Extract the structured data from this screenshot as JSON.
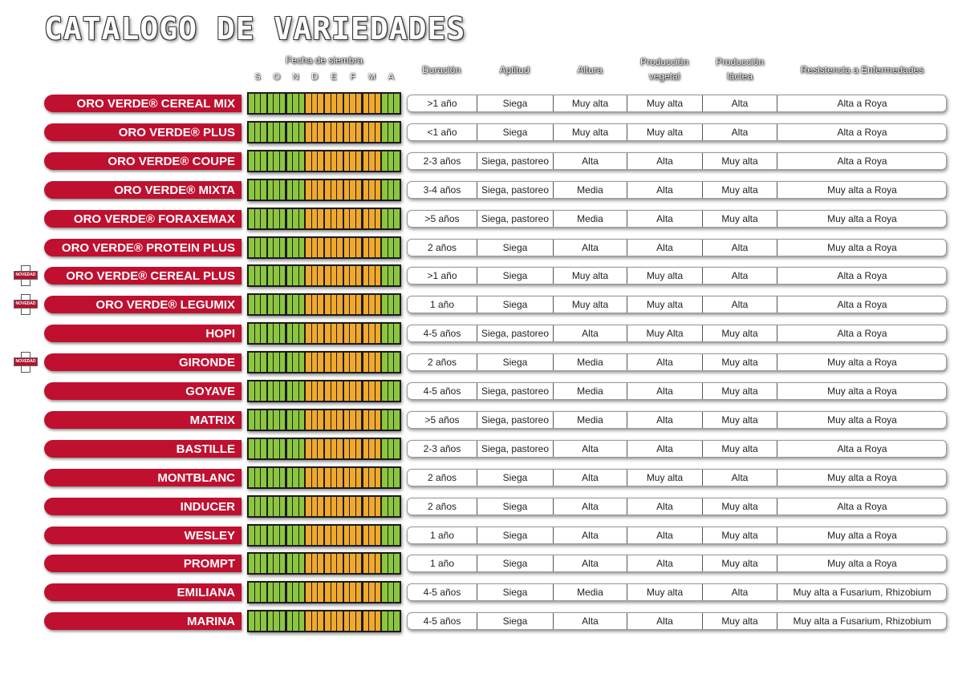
{
  "title": "CATALOGO DE VARIEDADES",
  "headers": {
    "fecha": "Fecha de siembra",
    "months": [
      "S",
      "O",
      "N",
      "D",
      "E",
      "F",
      "M",
      "A"
    ],
    "duracion": "Duración",
    "aptitud": "Aptitud",
    "altura": "Altura",
    "prod_vegetal": "Producción vegetal",
    "prod_lactea": "Producción láctea",
    "resistencia": "Resistencia a Enfermedades"
  },
  "badge_label": "NOVEDAD",
  "colors": {
    "green": "#8cc63f",
    "orange": "#f0a92c",
    "red": "#c0102f"
  },
  "month_colors": [
    "green",
    "green",
    "green",
    "orange",
    "orange",
    "orange",
    "orange",
    "green"
  ],
  "rows": [
    {
      "name": "ORO VERDE® CEREAL MIX",
      "novedad": false,
      "duracion": ">1 año",
      "aptitud": "Siega",
      "altura": "Muy alta",
      "vegetal": "Muy alta",
      "lactea": "Alta",
      "resistencia": "Alta a Roya"
    },
    {
      "name": "ORO VERDE® PLUS",
      "novedad": false,
      "duracion": "<1 año",
      "aptitud": "Siega",
      "altura": "Muy alta",
      "vegetal": "Muy alta",
      "lactea": "Alta",
      "resistencia": "Alta a Roya"
    },
    {
      "name": "ORO VERDE® COUPE",
      "novedad": false,
      "duracion": "2-3 años",
      "aptitud": "Siega, pastoreo",
      "altura": "Alta",
      "vegetal": "Alta",
      "lactea": "Muy alta",
      "resistencia": "Alta a Roya"
    },
    {
      "name": "ORO VERDE® MIXTA",
      "novedad": false,
      "duracion": "3-4 años",
      "aptitud": "Siega, pastoreo",
      "altura": "Media",
      "vegetal": "Alta",
      "lactea": "Muy alta",
      "resistencia": "Muy alta a Roya"
    },
    {
      "name": "ORO VERDE® FORAXEMAX",
      "novedad": false,
      "duracion": ">5 años",
      "aptitud": "Siega, pastoreo",
      "altura": "Media",
      "vegetal": "Alta",
      "lactea": "Muy alta",
      "resistencia": "Muy alta a Roya"
    },
    {
      "name": "ORO VERDE® PROTEIN PLUS",
      "novedad": false,
      "duracion": "2 años",
      "aptitud": "Siega",
      "altura": "Alta",
      "vegetal": "Alta",
      "lactea": "Alta",
      "resistencia": "Muy alta a Roya"
    },
    {
      "name": "ORO VERDE® CEREAL PLUS",
      "novedad": true,
      "duracion": ">1 año",
      "aptitud": "Siega",
      "altura": "Muy alta",
      "vegetal": "Muy alta",
      "lactea": "Alta",
      "resistencia": "Alta a Roya"
    },
    {
      "name": "ORO VERDE® LEGUMIX",
      "novedad": true,
      "duracion": "1 año",
      "aptitud": "Siega",
      "altura": "Muy alta",
      "vegetal": "Muy alta",
      "lactea": "Alta",
      "resistencia": "Alta a Roya"
    },
    {
      "name": "HOPI",
      "novedad": false,
      "duracion": "4-5 años",
      "aptitud": "Siega, pastoreo",
      "altura": "Alta",
      "vegetal": "Muy Alta",
      "lactea": "Muy alta",
      "resistencia": "Alta a Roya"
    },
    {
      "name": "GIRONDE",
      "novedad": true,
      "duracion": "2 años",
      "aptitud": "Siega",
      "altura": "Media",
      "vegetal": "Alta",
      "lactea": "Muy alta",
      "resistencia": "Muy alta a Roya"
    },
    {
      "name": "GOYAVE",
      "novedad": false,
      "duracion": "4-5 años",
      "aptitud": "Siega, pastoreo",
      "altura": "Media",
      "vegetal": "Alta",
      "lactea": "Muy alta",
      "resistencia": "Muy alta a Roya"
    },
    {
      "name": "MATRIX",
      "novedad": false,
      "duracion": ">5 años",
      "aptitud": "Siega, pastoreo",
      "altura": "Media",
      "vegetal": "Alta",
      "lactea": "Muy alta",
      "resistencia": "Muy alta a Roya"
    },
    {
      "name": "BASTILLE",
      "novedad": false,
      "duracion": "2-3 años",
      "aptitud": "Siega, pastoreo",
      "altura": "Alta",
      "vegetal": "Alta",
      "lactea": "Muy alta",
      "resistencia": "Alta a Roya"
    },
    {
      "name": "MONTBLANC",
      "novedad": false,
      "duracion": "2 años",
      "aptitud": "Siega",
      "altura": "Alta",
      "vegetal": "Muy alta",
      "lactea": "Alta",
      "resistencia": "Muy alta a Roya"
    },
    {
      "name": "INDUCER",
      "novedad": false,
      "duracion": "2 años",
      "aptitud": "Siega",
      "altura": "Alta",
      "vegetal": "Alta",
      "lactea": "Muy alta",
      "resistencia": "Alta a Roya"
    },
    {
      "name": "WESLEY",
      "novedad": false,
      "duracion": "1 año",
      "aptitud": "Siega",
      "altura": "Alta",
      "vegetal": "Alta",
      "lactea": "Muy alta",
      "resistencia": "Muy alta a Roya"
    },
    {
      "name": "PROMPT",
      "novedad": false,
      "duracion": "1 año",
      "aptitud": "Siega",
      "altura": "Alta",
      "vegetal": "Alta",
      "lactea": "Muy alta",
      "resistencia": "Muy alta a Roya"
    },
    {
      "name": "EMILIANA",
      "novedad": false,
      "duracion": "4-5 años",
      "aptitud": "Siega",
      "altura": "Media",
      "vegetal": "Muy alta",
      "lactea": "Alta",
      "resistencia": "Muy alta a Fusarium, Rhizobium"
    },
    {
      "name": "MARINA",
      "novedad": false,
      "duracion": "4-5 años",
      "aptitud": "Siega",
      "altura": "Alta",
      "vegetal": "Alta",
      "lactea": "Muy alta",
      "resistencia": "Muy alta a Fusarium, Rhizobium"
    }
  ]
}
